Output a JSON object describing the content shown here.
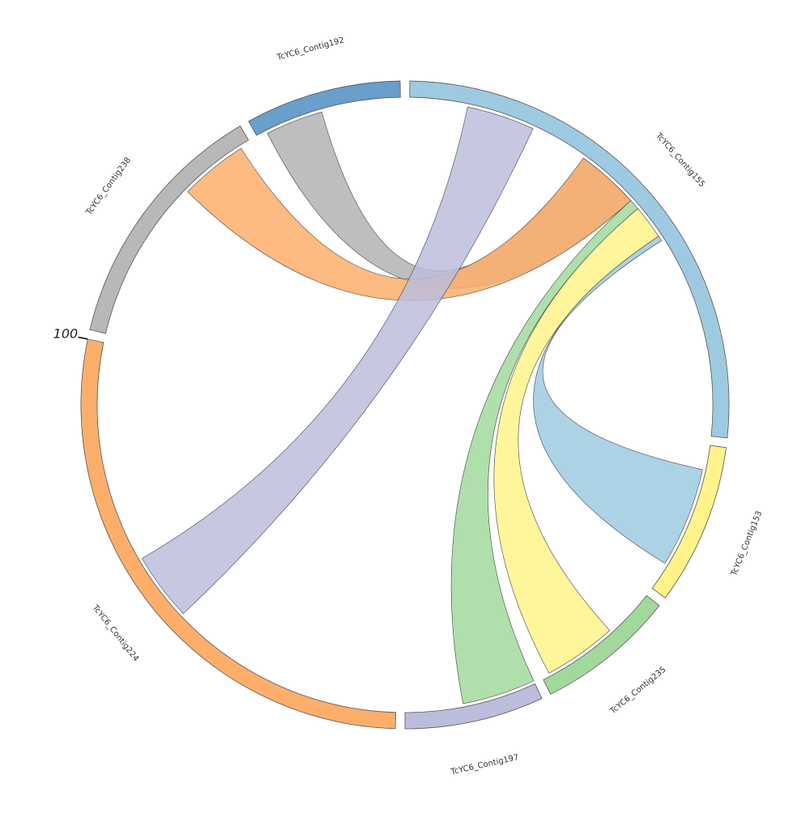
{
  "chart_data": {
    "type": "chord",
    "segments": [
      {
        "name": "TcYC6_Contig155",
        "length": 95,
        "color": "#9ecae1"
      },
      {
        "name": "TcYC6_Contig153",
        "length": 29,
        "color": "#fff38a"
      },
      {
        "name": "TcYC6_Contig235",
        "length": 25,
        "color": "#a1d99b"
      },
      {
        "name": "TcYC6_Contig197",
        "length": 25,
        "color": "#bcbddc"
      },
      {
        "name": "TcYC6_Contig224",
        "length": 100,
        "color": "#fdae6b",
        "ticks": [
          100
        ]
      },
      {
        "name": "TcYC6_Contig238",
        "length": 46,
        "color": "#b8b8b8"
      },
      {
        "name": "TcYC6_Contig192",
        "length": 28,
        "color": "#6a9ecb"
      }
    ],
    "links": [
      {
        "source": "TcYC6_Contig192",
        "source_range": [
          2,
          13
        ],
        "target": "TcYC6_Contig155",
        "target_range": [
          35,
          47
        ],
        "color": "#b3b3b3"
      },
      {
        "source": "TcYC6_Contig238",
        "source_range": [
          31,
          44
        ],
        "target": "TcYC6_Contig155",
        "target_range": [
          35,
          47
        ],
        "color": "#fdae6b"
      },
      {
        "source": "TcYC6_Contig155",
        "source_range": [
          11,
          24
        ],
        "target": "TcYC6_Contig224",
        "target_range": [
          45,
          58
        ],
        "color": "#bcbddc"
      },
      {
        "source": "TcYC6_Contig155",
        "source_range": [
          47,
          49
        ],
        "target": "TcYC6_Contig197",
        "target_range": [
          0,
          14
        ],
        "color": "#a1d99b"
      },
      {
        "source": "TcYC6_Contig155",
        "source_range": [
          49,
          55.5
        ],
        "target": "TcYC6_Contig235",
        "target_range": [
          9.5,
          23.5
        ],
        "color": "#fff38a"
      },
      {
        "source": "TcYC6_Contig155",
        "source_range": [
          55.5,
          56.5
        ],
        "target": "TcYC6_Contig153",
        "target_range": [
          4.7,
          23.8
        ],
        "color": "#9ecae1"
      }
    ]
  }
}
